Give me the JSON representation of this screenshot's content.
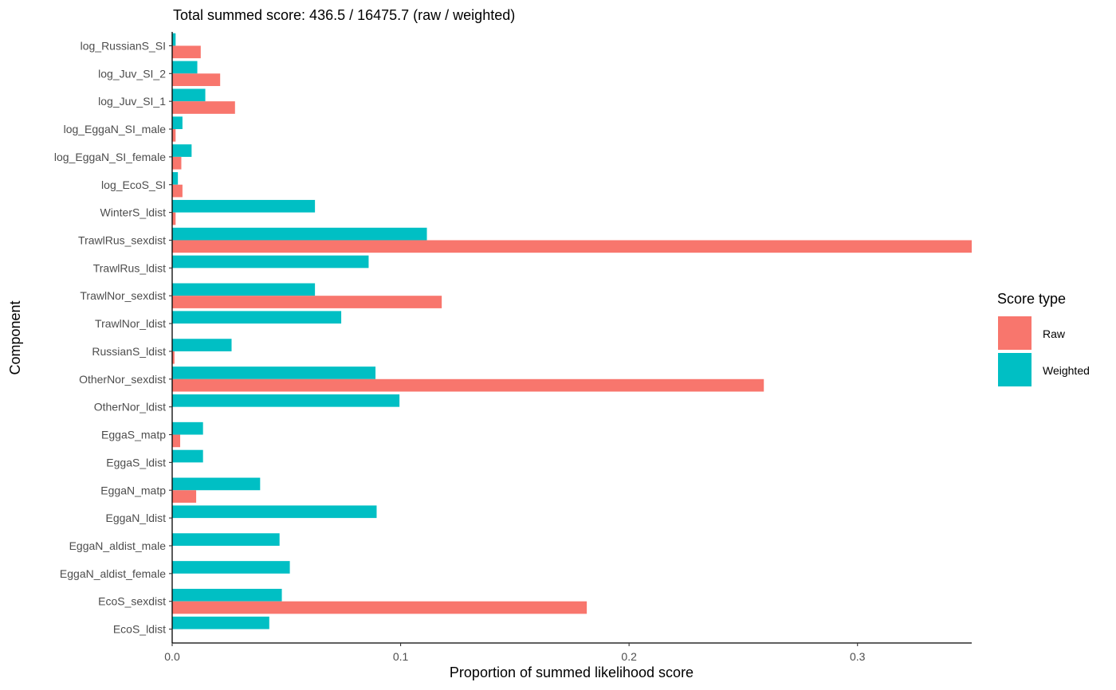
{
  "chart_data": {
    "type": "bar",
    "orientation": "horizontal",
    "title": "Total summed score: 436.5 / 16475.7 (raw / weighted)",
    "xlabel": "Proportion of summed likelihood score",
    "ylabel": "Component",
    "xlim": [
      0,
      0.35
    ],
    "xticks": [
      0.0,
      0.1,
      0.2,
      0.3
    ],
    "xtick_labels": [
      "0.0",
      "0.1",
      "0.2",
      "0.3"
    ],
    "grid": false,
    "legend": {
      "title": "Score type",
      "position": "right"
    },
    "categories": [
      "log_RussianS_SI",
      "log_Juv_SI_2",
      "log_Juv_SI_1",
      "log_EggaN_SI_male",
      "log_EggaN_SI_female",
      "log_EcoS_SI",
      "WinterS_ldist",
      "TrawlRus_sexdist",
      "TrawlRus_ldist",
      "TrawlNor_sexdist",
      "TrawlNor_ldist",
      "RussianS_ldist",
      "OtherNor_sexdist",
      "OtherNor_ldist",
      "EggaS_matp",
      "EggaS_ldist",
      "EggaN_matp",
      "EggaN_ldist",
      "EggaN_aldist_male",
      "EggaN_aldist_female",
      "EcoS_sexdist",
      "EcoS_ldist"
    ],
    "series": [
      {
        "name": "Raw",
        "color": "#F8766D",
        "values": [
          0.0125,
          0.021,
          0.0275,
          0.0015,
          0.004,
          0.0045,
          0.0015,
          0.35,
          0.0,
          0.118,
          0.0,
          0.001,
          0.259,
          0.0,
          0.0035,
          0.0,
          0.0105,
          0.0,
          0.0,
          0.0,
          0.1815,
          0.0
        ]
      },
      {
        "name": "Weighted",
        "color": "#00BFC4",
        "values": [
          0.0015,
          0.011,
          0.0145,
          0.0045,
          0.0085,
          0.0025,
          0.0625,
          0.1115,
          0.086,
          0.0625,
          0.074,
          0.026,
          0.089,
          0.0995,
          0.0135,
          0.0135,
          0.0385,
          0.0895,
          0.047,
          0.0515,
          0.048,
          0.0425
        ]
      }
    ]
  }
}
